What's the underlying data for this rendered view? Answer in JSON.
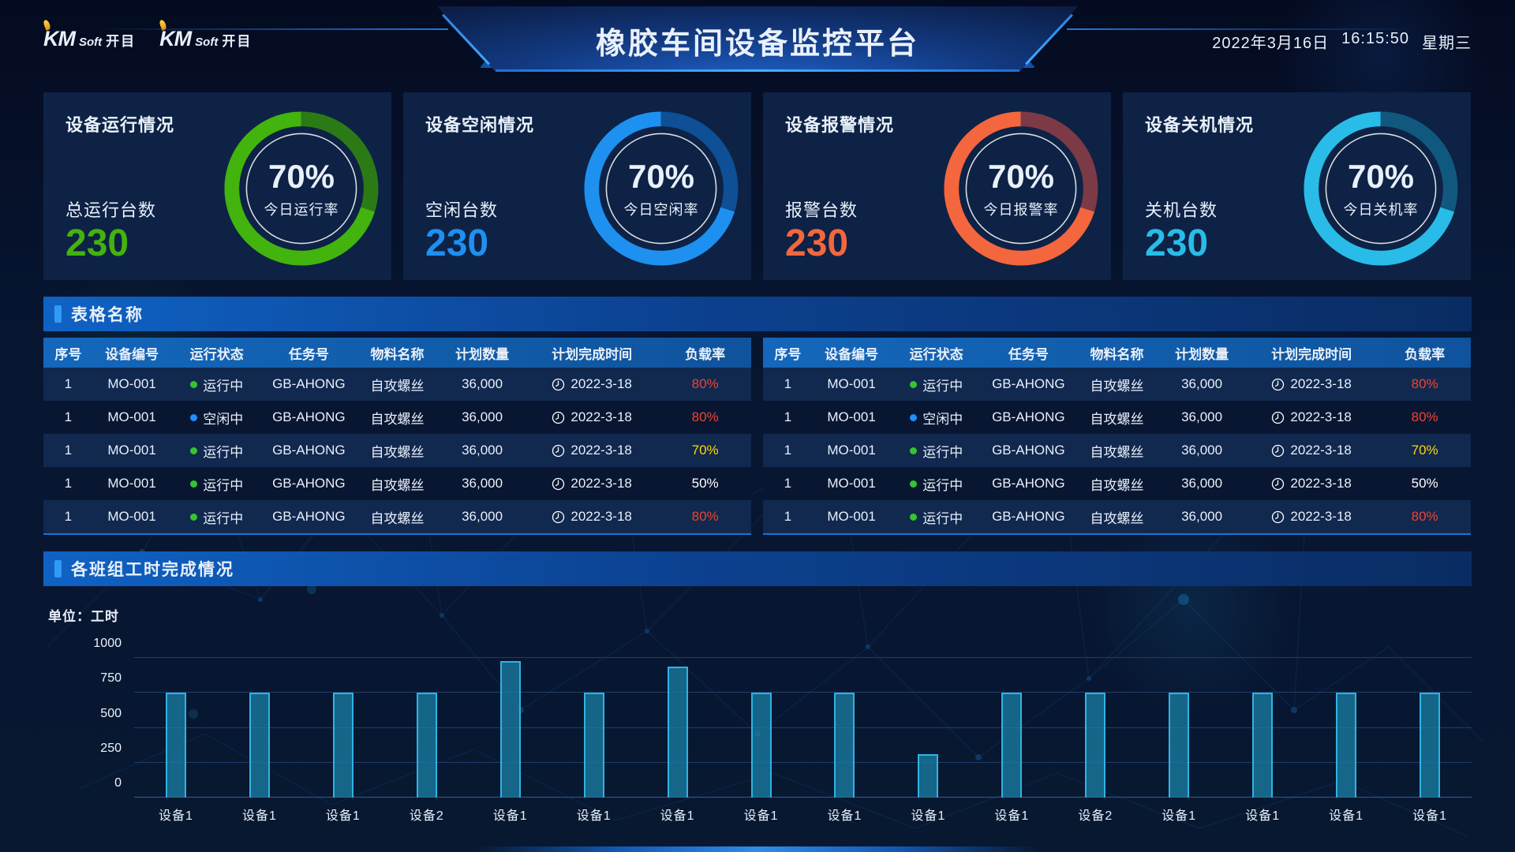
{
  "header": {
    "logo": {
      "km": "KM",
      "soft": "Soft",
      "cn": "开目"
    },
    "title": "橡胶车间设备监控平台",
    "date": "2022年3月16日",
    "time": "16:15:50",
    "weekday": "星期三"
  },
  "stat_cards": [
    {
      "title": "设备运行情况",
      "count_label": "总运行台数",
      "count": "230",
      "percent": "70%",
      "percent_value": 70,
      "rate_label": "今日运行率",
      "color": "#43b30e",
      "track_color": "#2c7a16"
    },
    {
      "title": "设备空闲情况",
      "count_label": "空闲台数",
      "count": "230",
      "percent": "70%",
      "percent_value": 70,
      "rate_label": "今日空闲率",
      "color": "#1e90f0",
      "track_color": "#0e4f95"
    },
    {
      "title": "设备报警情况",
      "count_label": "报警台数",
      "count": "230",
      "percent": "70%",
      "percent_value": 70,
      "rate_label": "今日报警率",
      "color": "#f4663d",
      "track_color": "#7b3a45"
    },
    {
      "title": "设备关机情况",
      "count_label": "关机台数",
      "count": "230",
      "percent": "70%",
      "percent_value": 70,
      "rate_label": "今日关机率",
      "color": "#29bce8",
      "track_color": "#11587f"
    }
  ],
  "table_section": {
    "title": "表格名称",
    "columns": [
      "序号",
      "设备编号",
      "运行状态",
      "任务号",
      "物料名称",
      "计划数量",
      "计划完成时间",
      "负载率"
    ],
    "rows": [
      {
        "seq": "1",
        "device": "MO-001",
        "status": "运行中",
        "status_color": "#35c52f",
        "task": "GB-AHONG",
        "material": "自攻螺丝",
        "qty": "36,000",
        "due": "2022-3-18",
        "load": "80%",
        "load_color": "#f0432e"
      },
      {
        "seq": "1",
        "device": "MO-001",
        "status": "空闲中",
        "status_color": "#1e90ff",
        "task": "GB-AHONG",
        "material": "自攻螺丝",
        "qty": "36,000",
        "due": "2022-3-18",
        "load": "80%",
        "load_color": "#f0432e"
      },
      {
        "seq": "1",
        "device": "MO-001",
        "status": "运行中",
        "status_color": "#35c52f",
        "task": "GB-AHONG",
        "material": "自攻螺丝",
        "qty": "36,000",
        "due": "2022-3-18",
        "load": "70%",
        "load_color": "#ffd800"
      },
      {
        "seq": "1",
        "device": "MO-001",
        "status": "运行中",
        "status_color": "#35c52f",
        "task": "GB-AHONG",
        "material": "自攻螺丝",
        "qty": "36,000",
        "due": "2022-3-18",
        "load": "50%",
        "load_color": "#ffffff"
      },
      {
        "seq": "1",
        "device": "MO-001",
        "status": "运行中",
        "status_color": "#35c52f",
        "task": "GB-AHONG",
        "material": "自攻螺丝",
        "qty": "36,000",
        "due": "2022-3-18",
        "load": "80%",
        "load_color": "#f0432e"
      }
    ]
  },
  "chart_section": {
    "title": "各班组工时完成情况",
    "unit_label": "单位：工时"
  },
  "chart_data": {
    "type": "bar",
    "title": "各班组工时完成情况",
    "unit": "工时",
    "categories": [
      "设备1",
      "设备1",
      "设备1",
      "设备2",
      "设备1",
      "设备1",
      "设备1",
      "设备1",
      "设备1",
      "设备1",
      "设备1",
      "设备2",
      "设备1",
      "设备1",
      "设备1",
      "设备1"
    ],
    "values": [
      750,
      750,
      750,
      750,
      975,
      750,
      940,
      750,
      750,
      310,
      750,
      750,
      750,
      750,
      750,
      750
    ],
    "ylim": [
      0,
      1000
    ],
    "yticks": [
      0,
      250,
      500,
      750,
      1000
    ],
    "grid": true,
    "legend": false,
    "bar_color": "#1a80a5",
    "bar_border": "#2fb3e3"
  }
}
